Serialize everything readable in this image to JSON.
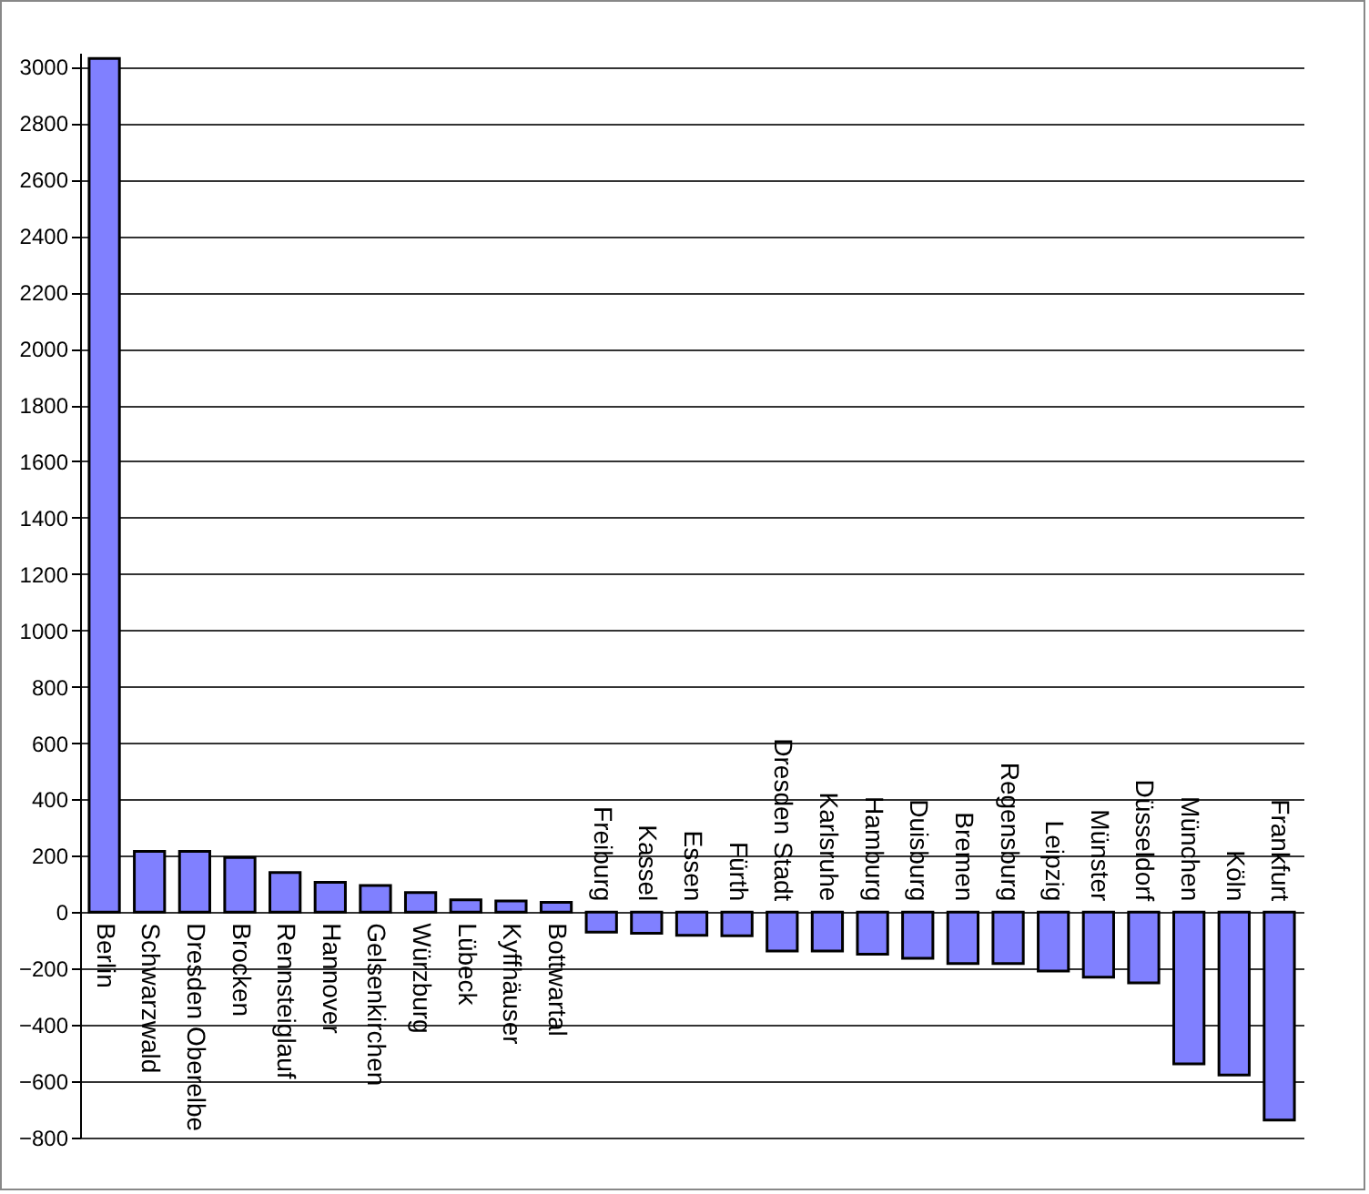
{
  "chart_data": {
    "type": "bar",
    "categories": [
      "Berlin",
      "Schwarzwald",
      "Dresden Oberelbe",
      "Brocken",
      "Rennsteiglauf",
      "Hannover",
      "Gelsenkirchen",
      "Würzburg",
      "Lübeck",
      "Kyffhäuser",
      "Bottwartal",
      "Freiburg",
      "Kassel",
      "Essen",
      "Fürth",
      "Dresden Stadt",
      "Karlsruhe",
      "Hamburg",
      "Duisburg",
      "Bremen",
      "Regensburg",
      "Leipzig",
      "Münster",
      "Düsseldorf",
      "München",
      "Köln",
      "Frankfurt"
    ],
    "values": [
      3030,
      216,
      216,
      194,
      141,
      106,
      95,
      70,
      44,
      40,
      35,
      -71,
      -75,
      -82,
      -84,
      -138,
      -138,
      -149,
      -164,
      -182,
      -182,
      -209,
      -231,
      -251,
      -538,
      -578,
      -738
    ],
    "color": "#8080ff",
    "ylim": [
      -800,
      3050
    ],
    "yticks": [
      -800,
      -600,
      -400,
      -200,
      0,
      200,
      400,
      600,
      800,
      1000,
      1200,
      1400,
      1600,
      1800,
      2000,
      2200,
      2400,
      2600,
      2800,
      3000
    ],
    "grid": "y"
  }
}
